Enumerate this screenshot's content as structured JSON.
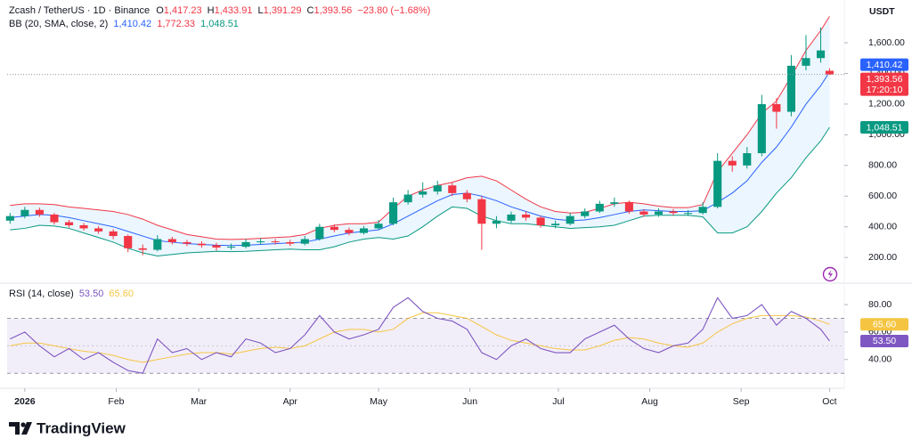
{
  "header": {
    "symbol": "Zcash / TetherUS · 1D · Binance",
    "o": "O",
    "h": "H",
    "l": "L",
    "c": "C",
    "change": "−23.80 (−1.68%)",
    "bb_title": "BB (20, SMA, close, 2)",
    "rsi_title": "RSI (14, close)",
    "currency": "USDT",
    "countdown": "17:20:10",
    "brand": "TradingView"
  },
  "chart_data": [
    {
      "type": "candlestick",
      "x": [
        -5,
        0,
        5,
        10,
        15,
        20,
        25,
        30,
        35,
        40,
        45,
        50,
        55,
        60,
        65,
        70,
        75,
        80,
        85,
        90,
        95,
        100,
        105,
        110,
        115,
        120,
        125,
        130,
        135,
        140,
        145,
        150,
        155,
        160,
        165,
        170,
        175,
        180,
        185,
        190,
        195,
        200,
        205,
        210,
        215,
        220,
        225,
        230,
        235,
        240,
        245,
        250,
        255,
        260,
        265,
        270,
        273
      ],
      "open": [
        440,
        470,
        510,
        480,
        430,
        410,
        390,
        370,
        340,
        260,
        250,
        320,
        300,
        290,
        280,
        265,
        270,
        300,
        305,
        300,
        290,
        320,
        400,
        380,
        360,
        390,
        420,
        560,
        610,
        630,
        670,
        620,
        580,
        420,
        440,
        480,
        460,
        410,
        420,
        470,
        500,
        550,
        560,
        500,
        480,
        500,
        490,
        490,
        530,
        830,
        800,
        880,
        1200,
        1150,
        1450,
        1500,
        1417.23
      ],
      "high": [
        490,
        530,
        525,
        490,
        445,
        425,
        405,
        385,
        350,
        285,
        345,
        335,
        315,
        305,
        295,
        290,
        320,
        325,
        320,
        315,
        340,
        420,
        415,
        395,
        405,
        445,
        590,
        640,
        690,
        700,
        690,
        640,
        600,
        470,
        500,
        500,
        470,
        440,
        490,
        520,
        570,
        590,
        570,
        515,
        520,
        515,
        510,
        560,
        880,
        860,
        920,
        1260,
        1240,
        1520,
        1650,
        1700,
        1433.91
      ],
      "low": [
        420,
        455,
        465,
        415,
        395,
        375,
        355,
        320,
        235,
        215,
        240,
        285,
        275,
        265,
        245,
        250,
        260,
        285,
        285,
        275,
        280,
        310,
        365,
        345,
        350,
        380,
        410,
        545,
        590,
        610,
        600,
        560,
        250,
        390,
        425,
        440,
        395,
        390,
        410,
        455,
        490,
        530,
        485,
        465,
        465,
        475,
        470,
        480,
        520,
        760,
        780,
        860,
        1040,
        1120,
        1420,
        1470,
        1391.29
      ],
      "close": [
        470,
        510,
        480,
        430,
        410,
        390,
        370,
        340,
        260,
        250,
        320,
        300,
        290,
        280,
        265,
        270,
        300,
        305,
        300,
        290,
        320,
        400,
        380,
        360,
        390,
        420,
        560,
        610,
        630,
        670,
        620,
        580,
        420,
        440,
        480,
        460,
        410,
        420,
        470,
        500,
        550,
        560,
        500,
        480,
        500,
        490,
        490,
        530,
        830,
        800,
        880,
        1200,
        1150,
        1450,
        1500,
        1550,
        1393.56
      ],
      "ohlc_labels": {
        "open": "1,417.23",
        "high": "1,433.91",
        "low": "1,391.29",
        "close": "1,393.56"
      },
      "up_color": "#089981",
      "down_color": "#f23645",
      "bands": {
        "basis": {
          "color": "#2962ff",
          "value_label": "1,410.42",
          "values": [
            460,
            470,
            480,
            475,
            460,
            440,
            420,
            400,
            370,
            340,
            310,
            300,
            290,
            285,
            280,
            278,
            280,
            285,
            290,
            295,
            300,
            320,
            340,
            360,
            370,
            380,
            420,
            470,
            520,
            570,
            610,
            620,
            600,
            570,
            530,
            500,
            470,
            450,
            440,
            445,
            460,
            480,
            500,
            510,
            505,
            500,
            500,
            505,
            560,
            620,
            700,
            820,
            920,
            1050,
            1200,
            1320,
            1410.42
          ]
        },
        "upper": {
          "color": "#f23645",
          "value_label": "1,772.33",
          "values": [
            540,
            550,
            550,
            545,
            530,
            520,
            510,
            500,
            480,
            450,
            410,
            380,
            350,
            335,
            320,
            318,
            320,
            325,
            330,
            335,
            350,
            390,
            410,
            420,
            420,
            430,
            520,
            600,
            640,
            670,
            690,
            720,
            730,
            700,
            640,
            580,
            530,
            500,
            490,
            495,
            520,
            550,
            560,
            550,
            535,
            525,
            525,
            545,
            760,
            880,
            1000,
            1140,
            1220,
            1380,
            1550,
            1680,
            1772.33
          ]
        },
        "lower": {
          "color": "#089981",
          "value_label": "1,048.51",
          "values": [
            380,
            390,
            410,
            405,
            390,
            360,
            330,
            300,
            260,
            230,
            210,
            220,
            230,
            235,
            240,
            238,
            240,
            245,
            250,
            255,
            250,
            250,
            270,
            300,
            320,
            330,
            320,
            340,
            400,
            470,
            530,
            520,
            470,
            440,
            420,
            420,
            410,
            400,
            390,
            395,
            400,
            410,
            440,
            470,
            475,
            475,
            475,
            465,
            360,
            360,
            400,
            500,
            620,
            720,
            850,
            960,
            1048.51
          ]
        }
      },
      "xlim": [
        -6,
        278
      ],
      "xticks": [
        {
          "value": 0,
          "label": "2026"
        },
        {
          "value": 31,
          "label": "Feb"
        },
        {
          "value": 59,
          "label": "Mar"
        },
        {
          "value": 90,
          "label": "Apr"
        },
        {
          "value": 120,
          "label": "May"
        },
        {
          "value": 151,
          "label": "Jun"
        },
        {
          "value": 181,
          "label": "Jul"
        },
        {
          "value": 212,
          "label": "Aug"
        },
        {
          "value": 243,
          "label": "Sep"
        },
        {
          "value": 273,
          "label": "Oct"
        }
      ],
      "ylim": [
        50,
        1830
      ],
      "yticks": [
        {
          "value": 200,
          "label": "200.00"
        },
        {
          "value": 400,
          "label": "400.00"
        },
        {
          "value": 600,
          "label": "600.00"
        },
        {
          "value": 800,
          "label": "800.00"
        },
        {
          "value": 1000,
          "label": "1,000.00"
        },
        {
          "value": 1200,
          "label": "1,200.00"
        },
        {
          "value": 1400,
          "label": "1,400.00"
        },
        {
          "value": 1600,
          "label": "1,600.00"
        }
      ],
      "grid": false
    },
    {
      "type": "line",
      "x": [
        -5,
        0,
        5,
        10,
        15,
        20,
        25,
        30,
        35,
        40,
        45,
        50,
        55,
        60,
        65,
        70,
        75,
        80,
        85,
        90,
        95,
        100,
        105,
        110,
        115,
        120,
        125,
        130,
        135,
        140,
        145,
        150,
        155,
        160,
        165,
        170,
        175,
        180,
        185,
        190,
        195,
        200,
        205,
        210,
        215,
        220,
        225,
        230,
        235,
        240,
        245,
        250,
        255,
        260,
        265,
        270,
        273
      ],
      "series": [
        {
          "color": "#7e57c2",
          "value_label": "53.50",
          "values": [
            55,
            60,
            50,
            42,
            48,
            40,
            45,
            38,
            32,
            30,
            55,
            45,
            48,
            40,
            45,
            42,
            55,
            52,
            45,
            48,
            58,
            72,
            60,
            55,
            58,
            62,
            78,
            85,
            75,
            70,
            68,
            62,
            45,
            40,
            50,
            55,
            48,
            45,
            45,
            55,
            60,
            65,
            55,
            48,
            45,
            50,
            52,
            62,
            85,
            70,
            72,
            80,
            65,
            75,
            70,
            62,
            53.5
          ]
        },
        {
          "color": "#f5c542",
          "value_label": "65.60",
          "values": [
            50,
            52,
            52,
            50,
            48,
            46,
            45,
            43,
            40,
            38,
            40,
            42,
            44,
            45,
            45,
            44,
            46,
            48,
            49,
            48,
            50,
            55,
            60,
            62,
            62,
            60,
            62,
            70,
            74,
            74,
            72,
            70,
            64,
            58,
            54,
            52,
            50,
            48,
            47,
            47,
            50,
            54,
            56,
            55,
            52,
            50,
            49,
            52,
            60,
            66,
            70,
            72,
            72,
            72,
            71,
            68,
            65.6
          ]
        }
      ],
      "levels": [
        30,
        50,
        70
      ],
      "xlim": [
        -6,
        278
      ],
      "ylim": [
        23,
        93
      ],
      "yticks": [
        {
          "value": 40,
          "label": "40.00"
        },
        {
          "value": 60,
          "label": "60.00"
        },
        {
          "value": 80,
          "label": "80.00"
        }
      ],
      "grid": false
    }
  ]
}
